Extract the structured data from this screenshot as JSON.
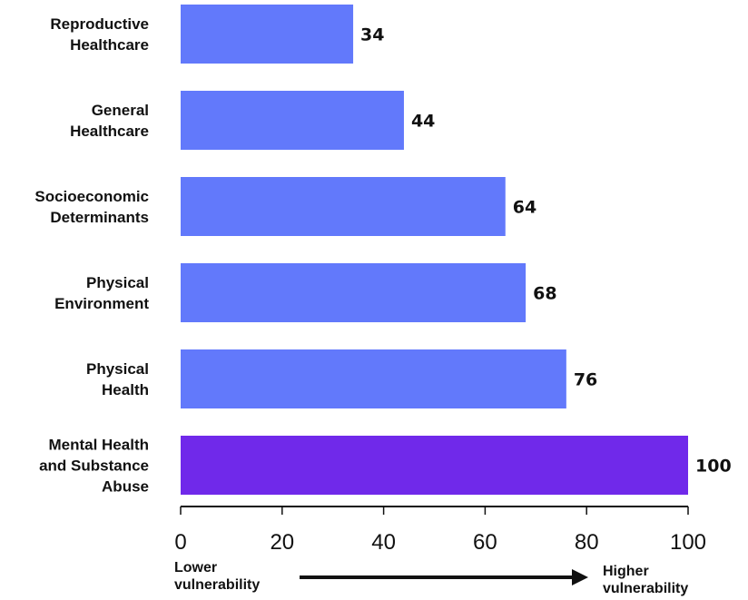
{
  "chart_data": {
    "type": "bar",
    "orientation": "horizontal",
    "categories": [
      [
        "Reproductive",
        "Healthcare"
      ],
      [
        "General",
        "Healthcare"
      ],
      [
        "Socioeconomic",
        "Determinants"
      ],
      [
        "Physical",
        "Environment"
      ],
      [
        "Physical",
        "Health"
      ],
      [
        "Mental Health",
        "and Substance",
        "Abuse"
      ]
    ],
    "values": [
      34,
      44,
      64,
      68,
      76,
      100
    ],
    "value_labels": [
      "34",
      "44",
      "64",
      "68",
      "76",
      "100"
    ],
    "xlim": [
      0,
      100
    ],
    "x_ticks": [
      "0",
      "20",
      "40",
      "60",
      "80",
      "100"
    ],
    "grid": false,
    "legend": "none",
    "scale_labels": {
      "low": [
        "Lower",
        "vulnerability"
      ],
      "high": [
        "Higher",
        "vulnerability"
      ]
    },
    "colors": {
      "bar": "#6279fb",
      "highlight": "#7029ea",
      "axis": "#111111",
      "text": "#111111"
    },
    "highlight_index": 5
  }
}
